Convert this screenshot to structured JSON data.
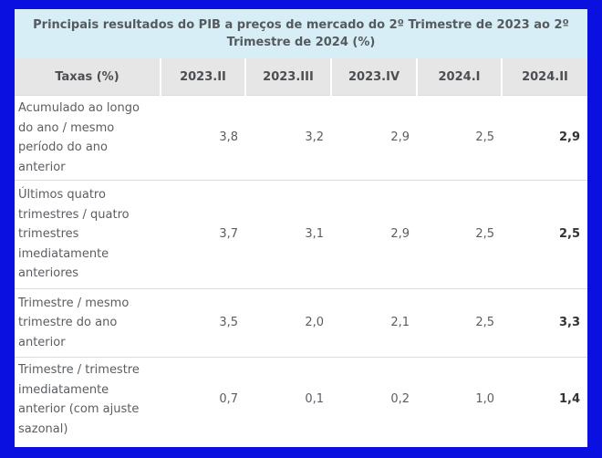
{
  "table": {
    "caption": "Principais resultados do PIB a preços de mercado do 2º Trimestre de 2023 ao 2º Trimestre de 2024 (%)",
    "headers": [
      "Taxas (%)",
      "2023.II",
      "2023.III",
      "2023.IV",
      "2024.I",
      "2024.II"
    ],
    "rows": [
      {
        "label": "Acumulado ao longo do ano / mesmo período do ano anterior",
        "values": [
          "3,8",
          "3,2",
          "2,9",
          "2,5",
          "2,9"
        ]
      },
      {
        "label": "Últimos quatro trimestres / quatro trimestres imediatamente anteriores",
        "values": [
          "3,7",
          "3,1",
          "2,9",
          "2,5",
          "2,5"
        ]
      },
      {
        "label": "Trimestre / mesmo trimestre do ano anterior",
        "values": [
          "3,5",
          "2,0",
          "2,1",
          "2,5",
          "3,3"
        ]
      },
      {
        "label": "Trimestre / trimestre imediatamente anterior (com ajuste sazonal)",
        "values": [
          "0,7",
          "0,1",
          "0,2",
          "1,0",
          "1,4"
        ]
      }
    ]
  },
  "colors": {
    "border": "#0a10e0",
    "caption_bg": "#d7eef6",
    "header_bg": "#e6e6e6"
  }
}
